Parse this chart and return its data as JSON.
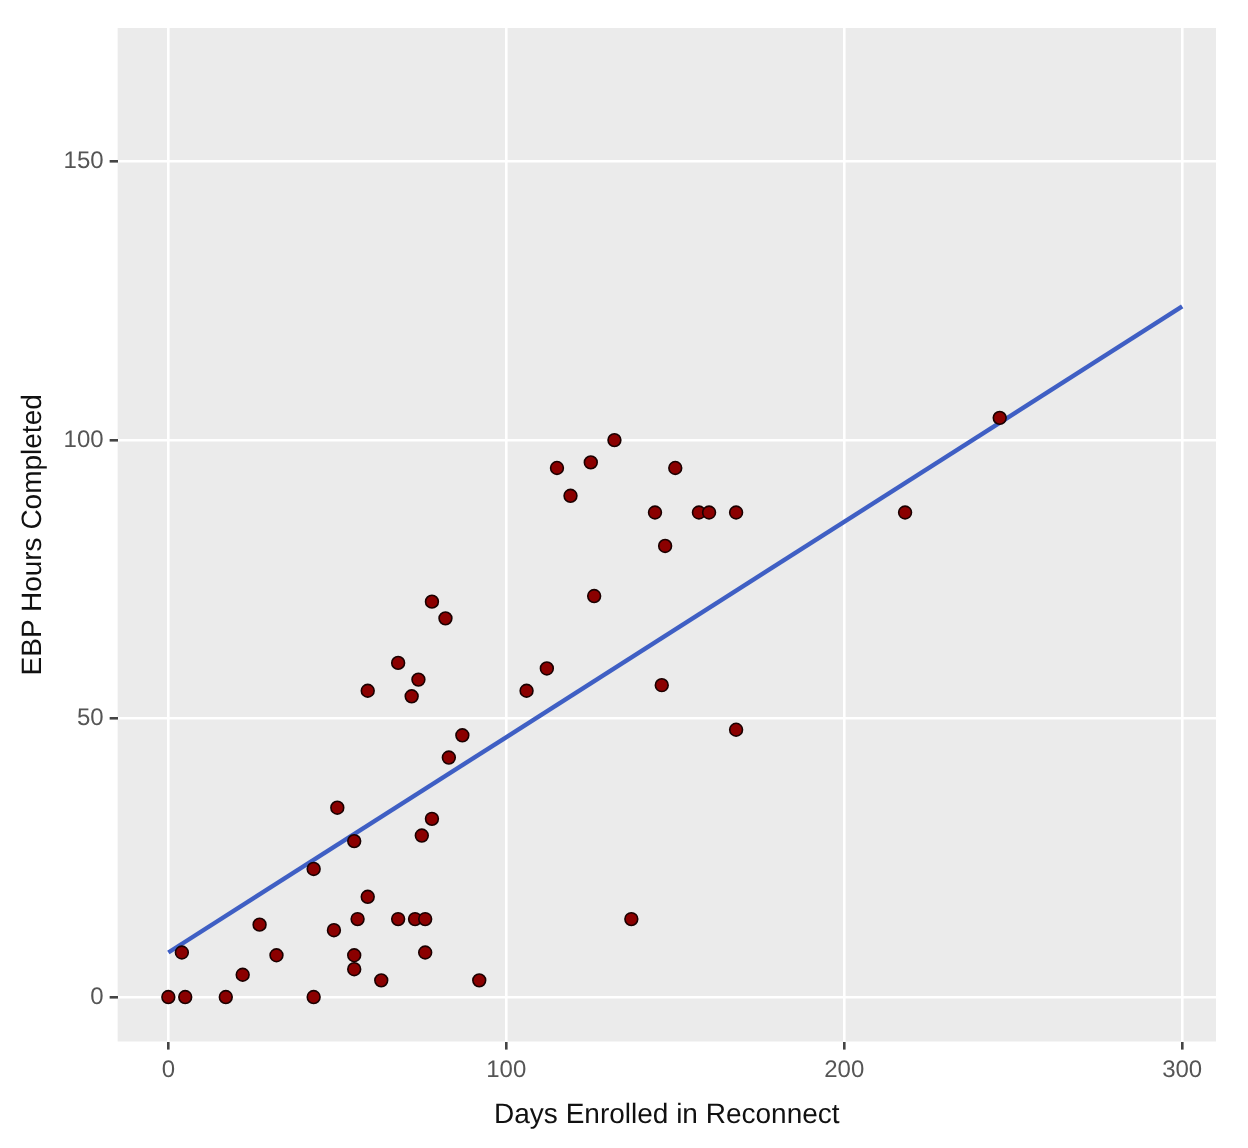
{
  "chart_data": {
    "type": "scatter",
    "xlabel": "Days Enrolled in Reconnect",
    "ylabel": "EBP Hours Completed",
    "xlim": [
      -15,
      310
    ],
    "ylim": [
      -8,
      174
    ],
    "xticks": [
      0,
      100,
      200,
      300
    ],
    "yticks": [
      0,
      50,
      100,
      150
    ],
    "grid": true,
    "legend": false,
    "marker": "circle",
    "series": [
      {
        "color": "#8b0000",
        "x": [
          0,
          5,
          4,
          17,
          22,
          27,
          32,
          43,
          43,
          49,
          50,
          55,
          55,
          55,
          56,
          59,
          59,
          63,
          68,
          73,
          76,
          76,
          75,
          78,
          87,
          83,
          92,
          78,
          82,
          68,
          74,
          72,
          106,
          112,
          115,
          125,
          132,
          119,
          150,
          144,
          147,
          157,
          160,
          126,
          146,
          168,
          168,
          218,
          246,
          137
        ],
        "values": [
          0,
          0,
          8,
          0,
          4,
          13,
          7.5,
          0,
          23,
          12,
          34,
          28,
          7.5,
          5,
          14,
          18,
          55,
          3,
          14,
          14,
          14,
          8,
          29,
          32,
          47,
          43,
          3,
          71,
          68,
          60,
          57,
          54,
          55,
          59,
          95,
          96,
          100,
          90,
          95,
          87,
          81,
          87,
          87,
          72,
          56,
          87,
          48,
          87,
          104,
          14
        ]
      },
      {
        "type": "line",
        "marker": "none",
        "color": "#3f5fc4",
        "x": [
          0,
          300
        ],
        "values": [
          8,
          124
        ]
      }
    ]
  }
}
